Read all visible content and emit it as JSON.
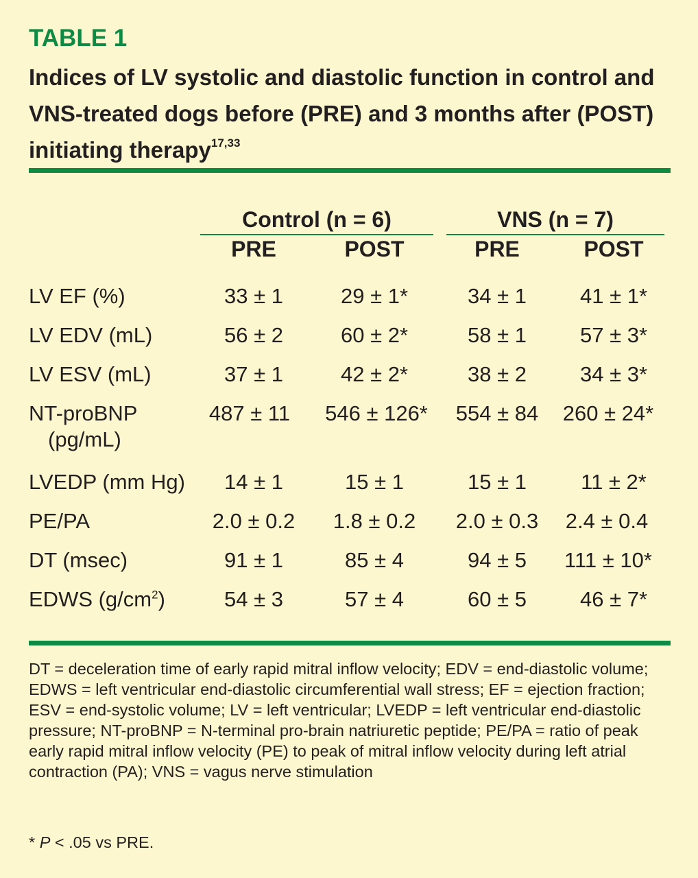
{
  "table": {
    "label": "TABLE 1",
    "title_main": "Indices of LV systolic and diastolic function in control and VNS-treated dogs before (PRE) and 3 months after (POST) initiating therapy",
    "title_refs": "17,33"
  },
  "groups": [
    {
      "name": "Control (n = 6)",
      "cols": [
        "PRE",
        "POST"
      ]
    },
    {
      "name": "VNS (n = 7)",
      "cols": [
        "PRE",
        "POST"
      ]
    }
  ],
  "rows": [
    {
      "label": "LV EF (%)",
      "label2": "",
      "sup": "",
      "label_suffix": "",
      "values": [
        "33 ± 1",
        "29 ± 1*",
        "34 ± 1",
        "41 ± 1*"
      ]
    },
    {
      "label": "LV EDV (mL)",
      "label2": "",
      "sup": "",
      "label_suffix": "",
      "values": [
        "56 ± 2",
        "60 ± 2*",
        "58 ± 1",
        "57 ± 3*"
      ]
    },
    {
      "label": "LV ESV (mL)",
      "label2": "",
      "sup": "",
      "label_suffix": "",
      "values": [
        "37 ± 1",
        "42 ± 2*",
        "38 ± 2",
        "34 ± 3*"
      ]
    },
    {
      "label": "NT-proBNP",
      "label2": "(pg/mL)",
      "sup": "",
      "label_suffix": "",
      "values": [
        "487 ± 11",
        "546 ± 126*",
        "554 ± 84",
        "260 ± 24*"
      ]
    },
    {
      "label": "LVEDP (mm Hg)",
      "label2": "",
      "sup": "",
      "label_suffix": "",
      "values": [
        "14 ± 1",
        "15 ± 1",
        "15 ± 1",
        "11 ± 2*"
      ]
    },
    {
      "label": "PE/PA",
      "label2": "",
      "sup": "",
      "label_suffix": "",
      "values": [
        "2.0 ± 0.2",
        "1.8 ± 0.2",
        "2.0 ± 0.3",
        "2.4 ± 0.4"
      ]
    },
    {
      "label": "DT (msec)",
      "label2": "",
      "sup": "",
      "label_suffix": "",
      "values": [
        "91 ± 1",
        "85 ± 4",
        "94 ± 5",
        "111 ± 10*"
      ]
    },
    {
      "label": "EDWS (g/cm",
      "label2": "",
      "sup": "2",
      "label_suffix": ")",
      "values": [
        "54 ± 3",
        "57 ± 4",
        "60 ± 5",
        "46 ± 7*"
      ]
    }
  ],
  "footnote": {
    "abbreviations": "DT = deceleration time of early rapid mitral inflow velocity; EDV = end-diastolic volume; EDWS = left ventricular end-diastolic circumferential wall stress; EF = ejection fraction; ESV = end-systolic volume; LV = left ventricular; LVEDP = left ventricular end-diastolic pressure; NT-proBNP = N-terminal pro-brain natriuretic peptide; PE/PA = ratio of peak early rapid mitral inflow velocity (PE) to peak of mitral inflow velocity during left atrial contraction (PA); VNS = vagus nerve stimulation",
    "significance_prefix": "* ",
    "significance_p": "P",
    "significance_rest": " < .05 vs PRE."
  },
  "colors": {
    "accent": "#0f8a45",
    "background": "#fdf7cf",
    "text": "#231f20"
  }
}
